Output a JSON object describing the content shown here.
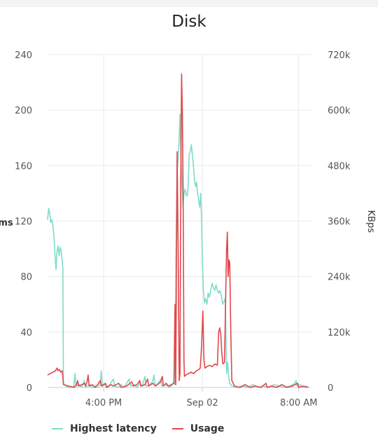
{
  "chart_data": {
    "type": "line",
    "title": "Disk",
    "ylabel": "ms",
    "y2label": "KBps",
    "ylim": [
      0,
      240
    ],
    "y2lim": [
      0,
      720000
    ],
    "yticks": [
      "0",
      "40",
      "80",
      "120",
      "160",
      "200",
      "240"
    ],
    "y2ticks": [
      "0",
      "120k",
      "240k",
      "360k",
      "480k",
      "600k",
      "720k"
    ],
    "xticks": [
      {
        "label": "4:00 PM",
        "x": 0.213
      },
      {
        "label": "Sep 02",
        "x": 0.588
      },
      {
        "label": "8:00 AM",
        "x": 0.954
      }
    ],
    "grid": true,
    "legend_position": "bottom-left",
    "series": [
      {
        "name": "Highest latency",
        "axis": "left",
        "color": "#7fdcc9",
        "points": [
          [
            0.0,
            121
          ],
          [
            0.004,
            129
          ],
          [
            0.008,
            126
          ],
          [
            0.012,
            119
          ],
          [
            0.016,
            121
          ],
          [
            0.02,
            117
          ],
          [
            0.024,
            110
          ],
          [
            0.028,
            96
          ],
          [
            0.032,
            85
          ],
          [
            0.036,
            99
          ],
          [
            0.04,
            102
          ],
          [
            0.044,
            95
          ],
          [
            0.048,
            101
          ],
          [
            0.052,
            98
          ],
          [
            0.055,
            92
          ],
          [
            0.058,
            86
          ],
          [
            0.06,
            3
          ],
          [
            0.07,
            1
          ],
          [
            0.08,
            0
          ],
          [
            0.09,
            0
          ],
          [
            0.1,
            1
          ],
          [
            0.104,
            10
          ],
          [
            0.108,
            1
          ],
          [
            0.12,
            2
          ],
          [
            0.13,
            0
          ],
          [
            0.14,
            5
          ],
          [
            0.144,
            0
          ],
          [
            0.16,
            2
          ],
          [
            0.17,
            0
          ],
          [
            0.18,
            1
          ],
          [
            0.19,
            0
          ],
          [
            0.2,
            3
          ],
          [
            0.204,
            12
          ],
          [
            0.208,
            1
          ],
          [
            0.22,
            2
          ],
          [
            0.23,
            0
          ],
          [
            0.24,
            3
          ],
          [
            0.25,
            6
          ],
          [
            0.255,
            1
          ],
          [
            0.27,
            0
          ],
          [
            0.28,
            2
          ],
          [
            0.29,
            0
          ],
          [
            0.31,
            6
          ],
          [
            0.315,
            1
          ],
          [
            0.33,
            2
          ],
          [
            0.34,
            0
          ],
          [
            0.35,
            3
          ],
          [
            0.36,
            1
          ],
          [
            0.37,
            8
          ],
          [
            0.374,
            1
          ],
          [
            0.39,
            2
          ],
          [
            0.4,
            5
          ],
          [
            0.404,
            9
          ],
          [
            0.408,
            1
          ],
          [
            0.42,
            3
          ],
          [
            0.43,
            6
          ],
          [
            0.434,
            1
          ],
          [
            0.45,
            2
          ],
          [
            0.46,
            0
          ],
          [
            0.47,
            1
          ],
          [
            0.48,
            4
          ],
          [
            0.484,
            2
          ],
          [
            0.488,
            100
          ],
          [
            0.492,
            155
          ],
          [
            0.496,
            165
          ],
          [
            0.5,
            180
          ],
          [
            0.503,
            197
          ],
          [
            0.506,
            170
          ],
          [
            0.51,
            150
          ],
          [
            0.514,
            130
          ],
          [
            0.518,
            140
          ],
          [
            0.522,
            143
          ],
          [
            0.526,
            139
          ],
          [
            0.53,
            138
          ],
          [
            0.534,
            145
          ],
          [
            0.538,
            168
          ],
          [
            0.542,
            170
          ],
          [
            0.546,
            175
          ],
          [
            0.55,
            168
          ],
          [
            0.554,
            160
          ],
          [
            0.558,
            150
          ],
          [
            0.562,
            145
          ],
          [
            0.566,
            148
          ],
          [
            0.57,
            140
          ],
          [
            0.574,
            135
          ],
          [
            0.578,
            130
          ],
          [
            0.582,
            140
          ],
          [
            0.585,
            120
          ],
          [
            0.588,
            90
          ],
          [
            0.592,
            70
          ],
          [
            0.596,
            61
          ],
          [
            0.6,
            64
          ],
          [
            0.605,
            60
          ],
          [
            0.61,
            68
          ],
          [
            0.615,
            65
          ],
          [
            0.62,
            70
          ],
          [
            0.625,
            75
          ],
          [
            0.63,
            72
          ],
          [
            0.635,
            70
          ],
          [
            0.64,
            74
          ],
          [
            0.645,
            70
          ],
          [
            0.65,
            68
          ],
          [
            0.655,
            70
          ],
          [
            0.66,
            66
          ],
          [
            0.665,
            60
          ],
          [
            0.67,
            62
          ],
          [
            0.675,
            64
          ],
          [
            0.68,
            10
          ],
          [
            0.684,
            18
          ],
          [
            0.688,
            8
          ],
          [
            0.692,
            3
          ],
          [
            0.7,
            1
          ],
          [
            0.72,
            0
          ],
          [
            0.74,
            1
          ],
          [
            0.76,
            0
          ],
          [
            0.78,
            2
          ],
          [
            0.8,
            0
          ],
          [
            0.82,
            1
          ],
          [
            0.84,
            0
          ],
          [
            0.86,
            2
          ],
          [
            0.88,
            1
          ],
          [
            0.9,
            0
          ],
          [
            0.92,
            1
          ],
          [
            0.94,
            3
          ],
          [
            0.944,
            5
          ],
          [
            0.948,
            1
          ],
          [
            0.96,
            2
          ],
          [
            0.97,
            0
          ],
          [
            0.98,
            1
          ],
          [
            0.99,
            0
          ]
        ]
      },
      {
        "name": "Usage",
        "axis": "right",
        "color": "#e0474c",
        "points": [
          [
            0.0,
            9
          ],
          [
            0.01,
            10
          ],
          [
            0.02,
            11
          ],
          [
            0.03,
            12
          ],
          [
            0.036,
            14
          ],
          [
            0.04,
            12
          ],
          [
            0.045,
            13
          ],
          [
            0.05,
            11
          ],
          [
            0.055,
            12
          ],
          [
            0.058,
            8
          ],
          [
            0.06,
            2
          ],
          [
            0.08,
            1
          ],
          [
            0.1,
            0
          ],
          [
            0.11,
            2
          ],
          [
            0.114,
            5
          ],
          [
            0.118,
            1
          ],
          [
            0.13,
            2
          ],
          [
            0.14,
            3
          ],
          [
            0.144,
            1
          ],
          [
            0.15,
            4
          ],
          [
            0.154,
            9
          ],
          [
            0.158,
            1
          ],
          [
            0.17,
            2
          ],
          [
            0.18,
            0
          ],
          [
            0.19,
            2
          ],
          [
            0.2,
            5
          ],
          [
            0.204,
            1
          ],
          [
            0.22,
            3
          ],
          [
            0.224,
            0
          ],
          [
            0.24,
            2
          ],
          [
            0.25,
            1
          ],
          [
            0.27,
            3
          ],
          [
            0.28,
            0
          ],
          [
            0.3,
            1
          ],
          [
            0.32,
            4
          ],
          [
            0.326,
            1
          ],
          [
            0.34,
            2
          ],
          [
            0.35,
            5
          ],
          [
            0.354,
            1
          ],
          [
            0.37,
            2
          ],
          [
            0.38,
            6
          ],
          [
            0.384,
            1
          ],
          [
            0.4,
            3
          ],
          [
            0.41,
            1
          ],
          [
            0.43,
            4
          ],
          [
            0.436,
            8
          ],
          [
            0.44,
            1
          ],
          [
            0.45,
            3
          ],
          [
            0.46,
            1
          ],
          [
            0.47,
            2
          ],
          [
            0.48,
            3
          ],
          [
            0.484,
            60
          ],
          [
            0.487,
            2
          ],
          [
            0.492,
            170
          ],
          [
            0.496,
            100
          ],
          [
            0.5,
            5
          ],
          [
            0.503,
            10
          ],
          [
            0.506,
            150
          ],
          [
            0.509,
            226
          ],
          [
            0.512,
            200
          ],
          [
            0.515,
            140
          ],
          [
            0.518,
            20
          ],
          [
            0.52,
            8
          ],
          [
            0.525,
            9
          ],
          [
            0.535,
            10
          ],
          [
            0.545,
            11
          ],
          [
            0.555,
            10
          ],
          [
            0.565,
            12
          ],
          [
            0.575,
            13
          ],
          [
            0.58,
            14
          ],
          [
            0.585,
            30
          ],
          [
            0.59,
            55
          ],
          [
            0.594,
            20
          ],
          [
            0.598,
            14
          ],
          [
            0.605,
            15
          ],
          [
            0.615,
            16
          ],
          [
            0.625,
            15
          ],
          [
            0.635,
            17
          ],
          [
            0.645,
            16
          ],
          [
            0.65,
            40
          ],
          [
            0.654,
            43
          ],
          [
            0.658,
            38
          ],
          [
            0.662,
            25
          ],
          [
            0.666,
            17
          ],
          [
            0.672,
            18
          ],
          [
            0.676,
            60
          ],
          [
            0.68,
            100
          ],
          [
            0.683,
            112
          ],
          [
            0.686,
            80
          ],
          [
            0.689,
            92
          ],
          [
            0.692,
            90
          ],
          [
            0.696,
            40
          ],
          [
            0.7,
            5
          ],
          [
            0.71,
            1
          ],
          [
            0.73,
            0
          ],
          [
            0.75,
            2
          ],
          [
            0.77,
            0
          ],
          [
            0.79,
            1
          ],
          [
            0.81,
            0
          ],
          [
            0.83,
            3
          ],
          [
            0.834,
            0
          ],
          [
            0.85,
            1
          ],
          [
            0.87,
            0
          ],
          [
            0.89,
            2
          ],
          [
            0.91,
            0
          ],
          [
            0.93,
            1
          ],
          [
            0.95,
            3
          ],
          [
            0.954,
            0
          ],
          [
            0.97,
            1
          ],
          [
            0.99,
            0
          ]
        ]
      }
    ]
  }
}
